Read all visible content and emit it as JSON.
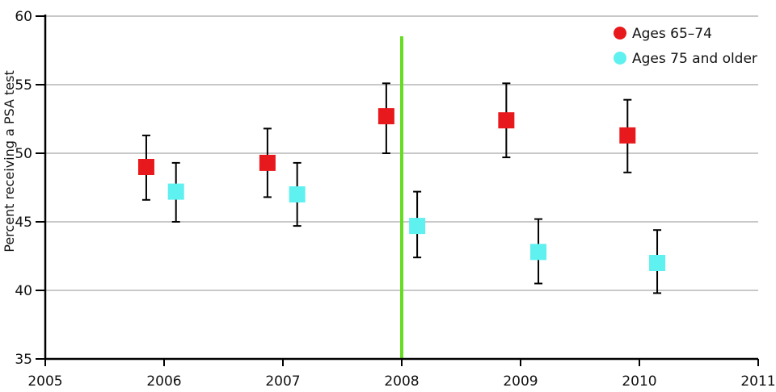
{
  "chart_data": {
    "type": "scatter",
    "title": "",
    "xlabel": "",
    "ylabel": "Percent receiving a PSA test",
    "xlim": [
      2005,
      2011
    ],
    "ylim": [
      35,
      60
    ],
    "x_ticks": [
      "2005",
      "2006",
      "2007",
      "2008",
      "2009",
      "2010",
      "2011"
    ],
    "y_ticks": [
      "35",
      "40",
      "45",
      "50",
      "55",
      "60"
    ],
    "grid": "horizontal",
    "legend_position": "top-right",
    "reference_line": {
      "x": 2008,
      "color": "#66dd22"
    },
    "series": [
      {
        "name": "Ages 65–74",
        "color": "#e8191c",
        "marker": "square",
        "points": [
          {
            "x": 2005.85,
            "y": 49.0,
            "low": 46.6,
            "high": 51.3
          },
          {
            "x": 2006.87,
            "y": 49.3,
            "low": 46.8,
            "high": 51.8
          },
          {
            "x": 2007.87,
            "y": 52.7,
            "low": 50.0,
            "high": 55.1
          },
          {
            "x": 2008.88,
            "y": 52.4,
            "low": 49.7,
            "high": 55.1
          },
          {
            "x": 2009.9,
            "y": 51.3,
            "low": 48.6,
            "high": 53.9
          }
        ]
      },
      {
        "name": "Ages 75 and older",
        "color": "#5ff0f0",
        "marker": "square",
        "points": [
          {
            "x": 2006.1,
            "y": 47.2,
            "low": 45.0,
            "high": 49.3
          },
          {
            "x": 2007.12,
            "y": 47.0,
            "low": 44.7,
            "high": 49.3
          },
          {
            "x": 2008.13,
            "y": 44.7,
            "low": 42.4,
            "high": 47.2
          },
          {
            "x": 2009.15,
            "y": 42.8,
            "low": 40.5,
            "high": 45.2
          },
          {
            "x": 2010.15,
            "y": 42.0,
            "low": 39.8,
            "high": 44.4
          }
        ]
      }
    ]
  }
}
